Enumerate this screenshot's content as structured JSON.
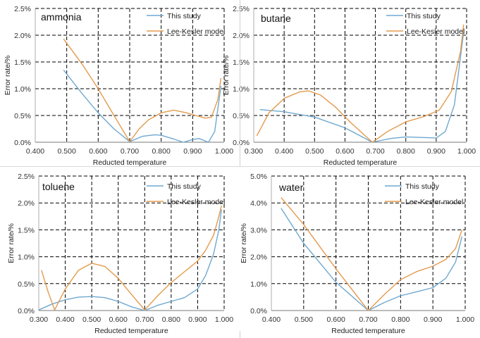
{
  "chart_data": [
    {
      "type": "line",
      "annotation": "ammonia",
      "xlabel": "Reducted temperature",
      "ylabel": "Error rate/%",
      "xlim": [
        0.4,
        1.0
      ],
      "ylim": [
        0,
        2.5
      ],
      "xticks": [
        "0.400",
        "0.500",
        "0.600",
        "0.700",
        "0.800",
        "0.900",
        "1.000"
      ],
      "yticks": [
        "0.0%",
        "0.5%",
        "1.0%",
        "1.5%",
        "2.0%",
        "2.5%"
      ],
      "grid": "dashed",
      "legend": "top-right",
      "series": [
        {
          "name": "This study",
          "color": "#6fa8d0",
          "x": [
            0.49,
            0.55,
            0.6,
            0.65,
            0.7,
            0.74,
            0.78,
            0.8,
            0.84,
            0.87,
            0.9,
            0.92,
            0.95,
            0.97,
            0.99
          ],
          "y": [
            1.35,
            0.9,
            0.55,
            0.25,
            0.01,
            0.11,
            0.14,
            0.13,
            0.06,
            0.0,
            0.05,
            0.07,
            0.0,
            0.2,
            1.05
          ]
        },
        {
          "name": "Lee-Kesler model",
          "color": "#e39a4e",
          "x": [
            0.49,
            0.55,
            0.6,
            0.65,
            0.7,
            0.73,
            0.76,
            0.8,
            0.84,
            0.88,
            0.91,
            0.94,
            0.96,
            0.98,
            0.99
          ],
          "y": [
            1.93,
            1.45,
            1.0,
            0.5,
            0.01,
            0.25,
            0.42,
            0.55,
            0.6,
            0.55,
            0.5,
            0.45,
            0.47,
            0.8,
            1.2
          ]
        }
      ]
    },
    {
      "type": "line",
      "annotation": "butane",
      "xlabel": "Reducted temperature",
      "ylabel": "Error rate/%",
      "xlim": [
        0.3,
        1.0
      ],
      "ylim": [
        0,
        2.5
      ],
      "xticks": [
        "0.300",
        "0.400",
        "0.500",
        "0.600",
        "0.700",
        "0.800",
        "0.900",
        "1.000"
      ],
      "yticks": [
        "0.0%",
        "0.5%",
        "1.0%",
        "1.5%",
        "2.0%",
        "2.5%"
      ],
      "grid": "dashed",
      "legend": "top-right",
      "series": [
        {
          "name": "This study",
          "color": "#6fa8d0",
          "x": [
            0.32,
            0.4,
            0.5,
            0.6,
            0.69,
            0.75,
            0.8,
            0.85,
            0.9,
            0.93,
            0.96,
            0.98,
            0.99
          ],
          "y": [
            0.61,
            0.57,
            0.47,
            0.27,
            0.0,
            0.07,
            0.1,
            0.09,
            0.08,
            0.2,
            0.7,
            1.6,
            2.05
          ]
        },
        {
          "name": "Lee-Kesler model",
          "color": "#e39a4e",
          "x": [
            0.31,
            0.35,
            0.4,
            0.45,
            0.48,
            0.52,
            0.57,
            0.62,
            0.69,
            0.74,
            0.8,
            0.86,
            0.91,
            0.95,
            0.98,
            0.99
          ],
          "y": [
            0.12,
            0.55,
            0.82,
            0.94,
            0.96,
            0.88,
            0.65,
            0.36,
            0.0,
            0.2,
            0.38,
            0.48,
            0.6,
            0.95,
            1.7,
            2.2
          ]
        }
      ]
    },
    {
      "type": "line",
      "annotation": "toluene",
      "xlabel": "Reducted temperature",
      "ylabel": "Error rate/%",
      "xlim": [
        0.3,
        1.0
      ],
      "ylim": [
        0,
        2.5
      ],
      "xticks": [
        "0.300",
        "0.400",
        "0.500",
        "0.600",
        "0.700",
        "0.800",
        "0.900",
        "1.000"
      ],
      "yticks": [
        "0.0%",
        "0.5%",
        "1.0%",
        "1.5%",
        "2.0%",
        "2.5%"
      ],
      "grid": "dashed",
      "legend": "top-right",
      "series": [
        {
          "name": "This study",
          "color": "#6fa8d0",
          "x": [
            0.3,
            0.35,
            0.4,
            0.45,
            0.5,
            0.55,
            0.6,
            0.65,
            0.7,
            0.75,
            0.8,
            0.85,
            0.9,
            0.93,
            0.96,
            0.98,
            0.99
          ],
          "y": [
            0.01,
            0.12,
            0.2,
            0.25,
            0.26,
            0.24,
            0.17,
            0.07,
            0.0,
            0.1,
            0.17,
            0.24,
            0.4,
            0.65,
            1.05,
            1.5,
            1.88
          ]
        },
        {
          "name": "Lee-Kesler model",
          "color": "#e39a4e",
          "x": [
            0.31,
            0.335,
            0.36,
            0.4,
            0.45,
            0.5,
            0.55,
            0.6,
            0.65,
            0.7,
            0.75,
            0.8,
            0.85,
            0.9,
            0.93,
            0.96,
            0.98,
            0.99
          ],
          "y": [
            0.75,
            0.35,
            0.01,
            0.4,
            0.75,
            0.88,
            0.82,
            0.6,
            0.3,
            0.01,
            0.28,
            0.52,
            0.72,
            0.92,
            1.12,
            1.4,
            1.75,
            1.95
          ]
        }
      ]
    },
    {
      "type": "line",
      "annotation": "water",
      "xlabel": "Reducted temperature",
      "ylabel": "Error rate/%",
      "xlim": [
        0.4,
        1.0
      ],
      "ylim": [
        0,
        5.0
      ],
      "xticks": [
        "0.400",
        "0.500",
        "0.600",
        "0.700",
        "0.800",
        "0.900",
        "1.000"
      ],
      "yticks": [
        "0.0%",
        "1.0%",
        "2.0%",
        "3.0%",
        "4.0%",
        "5.0%"
      ],
      "grid": "dashed",
      "legend": "top-right",
      "series": [
        {
          "name": "This study",
          "color": "#6fa8d0",
          "x": [
            0.43,
            0.5,
            0.6,
            0.7,
            0.75,
            0.8,
            0.85,
            0.9,
            0.94,
            0.97,
            0.99
          ],
          "y": [
            3.8,
            2.5,
            1.05,
            0.0,
            0.3,
            0.55,
            0.7,
            0.85,
            1.2,
            1.8,
            2.75
          ]
        },
        {
          "name": "Lee-Kesler model",
          "color": "#e39a4e",
          "x": [
            0.43,
            0.5,
            0.6,
            0.7,
            0.75,
            0.8,
            0.85,
            0.9,
            0.94,
            0.97,
            0.99
          ],
          "y": [
            4.2,
            3.2,
            1.55,
            0.0,
            0.6,
            1.15,
            1.45,
            1.65,
            1.9,
            2.3,
            3.0
          ]
        }
      ]
    }
  ]
}
